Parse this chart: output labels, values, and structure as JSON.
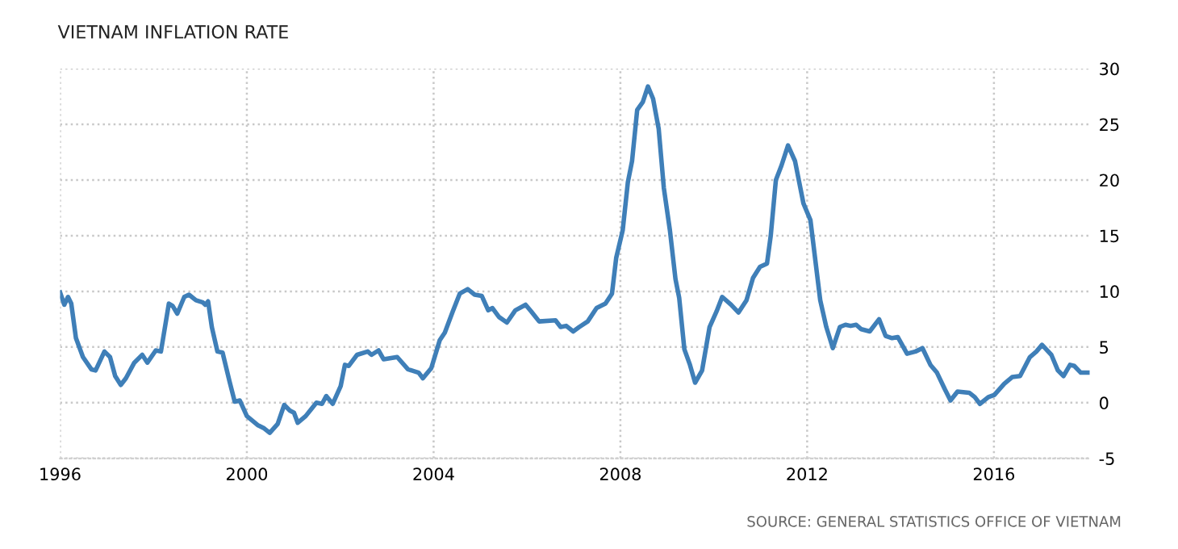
{
  "chart_data": {
    "type": "line",
    "title": "VIETNAM INFLATION RATE",
    "annotations": [
      "SOURCE: GENERAL STATISTICS OFFICE OF VIETNAM"
    ],
    "series": [
      {
        "color": "#3f7fb8",
        "x": [
          1996.0,
          1996.09,
          1996.17,
          1996.24,
          1996.34,
          1996.49,
          1996.67,
          1996.76,
          1996.95,
          1997.07,
          1997.18,
          1997.3,
          1997.41,
          1997.59,
          1997.76,
          1997.87,
          1998.05,
          1998.16,
          1998.33,
          1998.41,
          1998.51,
          1998.66,
          1998.76,
          1998.91,
          1999.06,
          1999.11,
          1999.17,
          1999.25,
          1999.37,
          1999.48,
          1999.63,
          1999.74,
          1999.85,
          2000.0,
          2000.23,
          2000.37,
          2000.49,
          2000.66,
          2000.8,
          2000.92,
          2001.01,
          2001.09,
          2001.26,
          2001.49,
          2001.61,
          2001.7,
          2001.84,
          2002.01,
          2002.1,
          2002.18,
          2002.36,
          2002.59,
          2002.67,
          2002.82,
          2002.93,
          2003.22,
          2003.45,
          2003.68,
          2003.77,
          2003.95,
          2004.13,
          2004.24,
          2004.41,
          2004.56,
          2004.73,
          2004.88,
          2005.03,
          2005.17,
          2005.26,
          2005.4,
          2005.57,
          2005.75,
          2005.97,
          2006.09,
          2006.26,
          2006.61,
          2006.72,
          2006.84,
          2006.99,
          2007.12,
          2007.3,
          2007.49,
          2007.68,
          2007.82,
          2007.91,
          2008.05,
          2008.16,
          2008.25,
          2008.36,
          2008.48,
          2008.59,
          2008.7,
          2008.82,
          2008.93,
          2009.06,
          2009.18,
          2009.26,
          2009.37,
          2009.49,
          2009.6,
          2009.75,
          2009.91,
          2010.06,
          2010.18,
          2010.37,
          2010.53,
          2010.7,
          2010.84,
          2010.99,
          2011.14,
          2011.22,
          2011.33,
          2011.45,
          2011.59,
          2011.74,
          2011.92,
          2012.07,
          2012.28,
          2012.41,
          2012.55,
          2012.7,
          2012.82,
          2012.93,
          2013.05,
          2013.16,
          2013.34,
          2013.54,
          2013.68,
          2013.82,
          2013.94,
          2014.14,
          2014.32,
          2014.47,
          2014.64,
          2014.78,
          2014.95,
          2015.07,
          2015.22,
          2015.47,
          2015.59,
          2015.7,
          2015.88,
          2016.01,
          2016.22,
          2016.39,
          2016.56,
          2016.77,
          2016.91,
          2017.03,
          2017.23,
          2017.37,
          2017.49,
          2017.63,
          2017.72,
          2017.86,
          2018.03
        ],
        "values": [
          9.9,
          8.8,
          9.5,
          8.9,
          5.8,
          4.1,
          3.0,
          2.9,
          4.6,
          4.1,
          2.4,
          1.6,
          2.2,
          3.6,
          4.3,
          3.6,
          4.7,
          4.6,
          8.9,
          8.7,
          8.0,
          9.5,
          9.7,
          9.2,
          9.0,
          8.8,
          9.1,
          6.8,
          4.6,
          4.5,
          1.9,
          0.1,
          0.2,
          -1.2,
          -2.0,
          -2.3,
          -2.7,
          -1.9,
          -0.2,
          -0.7,
          -0.9,
          -1.8,
          -1.2,
          0.0,
          -0.1,
          0.6,
          -0.1,
          1.5,
          3.4,
          3.3,
          4.3,
          4.6,
          4.3,
          4.7,
          3.9,
          4.1,
          3.0,
          2.7,
          2.2,
          3.1,
          5.6,
          6.3,
          8.2,
          9.8,
          10.2,
          9.7,
          9.6,
          8.3,
          8.5,
          7.7,
          7.2,
          8.3,
          8.8,
          8.2,
          7.3,
          7.4,
          6.8,
          6.9,
          6.4,
          6.8,
          7.3,
          8.5,
          8.9,
          9.8,
          13.0,
          15.5,
          19.8,
          21.7,
          26.3,
          27.0,
          28.4,
          27.3,
          24.6,
          19.3,
          15.5,
          11.1,
          9.4,
          4.8,
          3.4,
          1.8,
          2.9,
          6.8,
          8.2,
          9.5,
          8.8,
          8.1,
          9.2,
          11.2,
          12.2,
          12.5,
          15.0,
          20.0,
          21.3,
          23.1,
          21.7,
          17.9,
          16.4,
          9.2,
          6.8,
          4.9,
          6.8,
          7.0,
          6.9,
          7.0,
          6.6,
          6.4,
          7.5,
          6.0,
          5.8,
          5.9,
          4.4,
          4.6,
          4.9,
          3.4,
          2.7,
          1.2,
          0.2,
          1.0,
          0.9,
          0.5,
          -0.1,
          0.5,
          0.7,
          1.7,
          2.3,
          2.4,
          4.1,
          4.6,
          5.2,
          4.3,
          2.9,
          2.4,
          3.4,
          3.3,
          2.7,
          2.7
        ]
      }
    ],
    "xlim": [
      1996,
      2018.05
    ],
    "xticks": [
      1996,
      2000,
      2004,
      2008,
      2012,
      2016
    ],
    "ylim": [
      -5,
      30
    ],
    "yticks": [
      -5,
      0,
      5,
      10,
      15,
      20,
      25,
      30
    ],
    "grid": true,
    "legend": false,
    "marker": "none",
    "line_style": "solid"
  }
}
